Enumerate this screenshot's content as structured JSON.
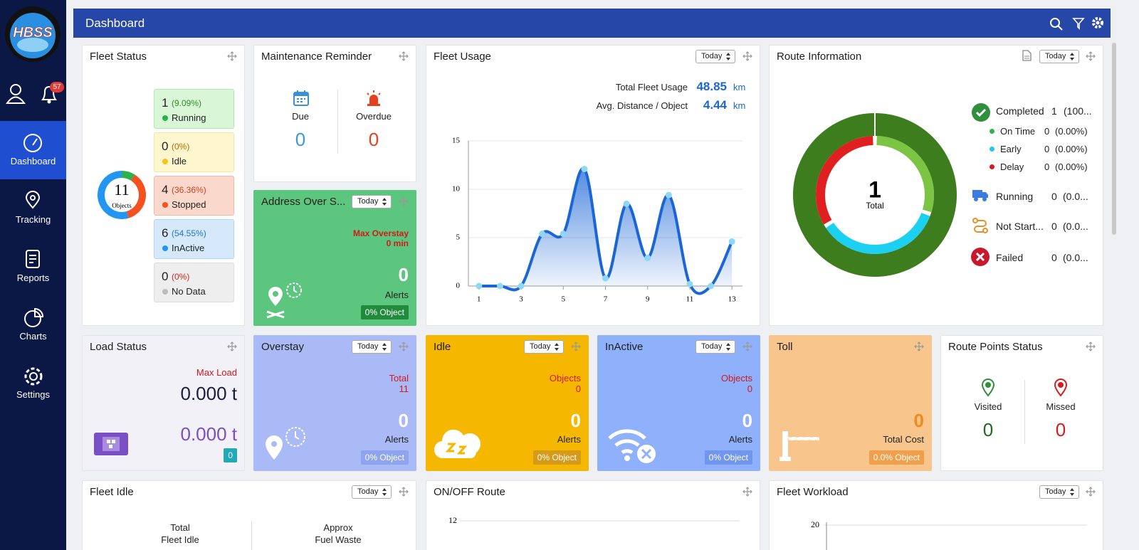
{
  "sidebar": {
    "logo": "HBSS",
    "badge": "57",
    "nav": [
      "Dashboard",
      "Tracking",
      "Reports",
      "Charts",
      "Settings"
    ]
  },
  "header": {
    "title": "Dashboard"
  },
  "filter": "Today",
  "fleet_status": {
    "title": "Fleet Status",
    "total": 11,
    "total_label": "Objects",
    "items": [
      {
        "count": 1,
        "percent": "(9.09%)",
        "label": "Running",
        "color": "#2bb24c"
      },
      {
        "count": 0,
        "percent": "(0%)",
        "label": "Idle",
        "color": "#f5c518"
      },
      {
        "count": 4,
        "percent": "(36.36%)",
        "label": "Stopped",
        "color": "#f4511e"
      },
      {
        "count": 6,
        "percent": "(54.55%)",
        "label": "InActive",
        "color": "#2196f3"
      },
      {
        "count": 0,
        "percent": "(0%)",
        "label": "No Data",
        "color": "#bdbdbd"
      }
    ]
  },
  "maintenance": {
    "title": "Maintenance Reminder",
    "due_label": "Due",
    "due": 0,
    "overdue_label": "Overdue",
    "overdue": 0
  },
  "address_overstay": {
    "title": "Address Over S...",
    "max_label": "Max Overstay",
    "max_value": "0 min",
    "alerts": 0,
    "alerts_label": "Alerts",
    "object": "0% Object"
  },
  "fleet_usage": {
    "title": "Fleet Usage",
    "total_label": "Total Fleet Usage",
    "total": 48.85,
    "avg_label": "Avg. Distance / Object",
    "avg": 4.44,
    "unit": "km",
    "chart": {
      "type": "line",
      "x": [
        1,
        2,
        3,
        4,
        5,
        6,
        7,
        8,
        9,
        10,
        11,
        12,
        13
      ],
      "values": [
        0,
        0,
        0,
        5.4,
        5.4,
        12.1,
        0.8,
        8.5,
        2.9,
        9.4,
        0.2,
        0,
        4.6
      ],
      "xlim": [
        0.5,
        13.5
      ],
      "ylim": [
        0,
        15
      ],
      "xticks": [
        1,
        3,
        5,
        7,
        9,
        11,
        13
      ],
      "yticks": [
        0,
        5,
        10,
        15
      ],
      "color": "#1a66d6",
      "grid": true
    }
  },
  "route_information": {
    "title": "Route Information",
    "total": 1,
    "total_label": "Total",
    "completed": {
      "label": "Completed",
      "count": 1,
      "percent": "(100...",
      "color": "#3d7d1e"
    },
    "sub": [
      {
        "label": "On Time",
        "count": 0,
        "percent": "(0.00%)",
        "color": "#2bb24c"
      },
      {
        "label": "Early",
        "count": 0,
        "percent": "(0.00%)",
        "color": "#1bc8ee"
      },
      {
        "label": "Delay",
        "count": 0,
        "percent": "(0.00%)",
        "color": "#d61b1b"
      }
    ],
    "others": [
      {
        "label": "Running",
        "count": 0,
        "percent": "(0.0..."
      },
      {
        "label": "Not Start...",
        "count": 0,
        "percent": "(0.0..."
      },
      {
        "label": "Failed",
        "count": 0,
        "percent": "(0.0..."
      }
    ]
  },
  "load_status": {
    "title": "Load Status",
    "max_label": "Max Load",
    "max_value": "0.000 t",
    "current": "0.000 t",
    "badge": 0
  },
  "overstay": {
    "title": "Overstay",
    "total_label": "Total",
    "total": 11,
    "alerts": 0,
    "alerts_label": "Alerts",
    "object": "0% Object"
  },
  "idle": {
    "title": "Idle",
    "objects_label": "Objects",
    "objects": 0,
    "alerts": 0,
    "alerts_label": "Alerts",
    "object": "0% Object"
  },
  "inactive": {
    "title": "InActive",
    "objects_label": "Objects",
    "objects": 0,
    "alerts": 0,
    "alerts_label": "Alerts",
    "object": "0% Object"
  },
  "toll": {
    "title": "Toll",
    "cost": 0,
    "cost_label": "Total Cost",
    "object": "0.0% Object"
  },
  "route_points": {
    "title": "Route Points Status",
    "visited_label": "Visited",
    "visited": 0,
    "missed_label": "Missed",
    "missed": 0
  },
  "fleet_idle": {
    "title": "Fleet Idle",
    "total_label": [
      "Total",
      "Fleet Idle"
    ],
    "approx_label": [
      "Approx",
      "Fuel Waste"
    ]
  },
  "on_off_route": {
    "title": "ON/OFF Route",
    "yticks": [
      12
    ]
  },
  "fleet_workload": {
    "title": "Fleet Workload",
    "yticks": [
      20
    ]
  }
}
